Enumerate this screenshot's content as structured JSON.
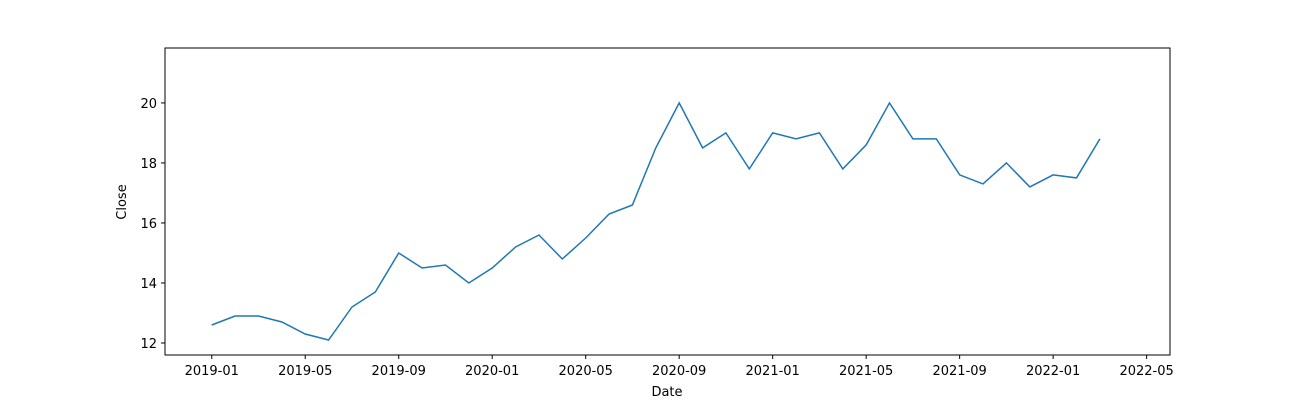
{
  "chart_data": {
    "type": "line",
    "xlabel": "Date",
    "ylabel": "Close",
    "x": [
      "2019-01",
      "2019-02",
      "2019-03",
      "2019-04",
      "2019-05",
      "2019-06",
      "2019-07",
      "2019-08",
      "2019-09",
      "2019-10",
      "2019-11",
      "2019-12",
      "2020-01",
      "2020-02",
      "2020-03",
      "2020-04",
      "2020-05",
      "2020-06",
      "2020-07",
      "2020-08",
      "2020-09",
      "2020-10",
      "2020-11",
      "2020-12",
      "2021-01",
      "2021-02",
      "2021-03",
      "2021-04",
      "2021-05",
      "2021-06",
      "2021-07",
      "2021-08",
      "2021-09",
      "2021-10",
      "2021-11",
      "2021-12",
      "2022-01",
      "2022-02",
      "2022-03"
    ],
    "series": [
      {
        "name": "Close",
        "color": "#1f77b4",
        "values": [
          12.6,
          12.9,
          12.9,
          12.7,
          12.3,
          12.1,
          13.2,
          13.7,
          15.0,
          14.5,
          14.6,
          14.0,
          14.5,
          15.2,
          15.6,
          14.8,
          15.5,
          16.3,
          16.6,
          18.5,
          20.0,
          18.5,
          19.0,
          17.8,
          19.0,
          18.8,
          19.0,
          17.8,
          18.6,
          20.0,
          18.8,
          18.8,
          17.6,
          17.3,
          18.0,
          17.2,
          17.6,
          17.5,
          18.8
        ]
      }
    ],
    "xlim": [
      "2018-11",
      "2022-06"
    ],
    "xticks": [
      "2019-01",
      "2019-05",
      "2019-09",
      "2020-01",
      "2020-05",
      "2020-09",
      "2021-01",
      "2021-05",
      "2021-09",
      "2022-01",
      "2022-05"
    ],
    "ylim": [
      11.6,
      21.83
    ],
    "yticks": [
      12,
      14,
      16,
      18,
      20
    ]
  }
}
